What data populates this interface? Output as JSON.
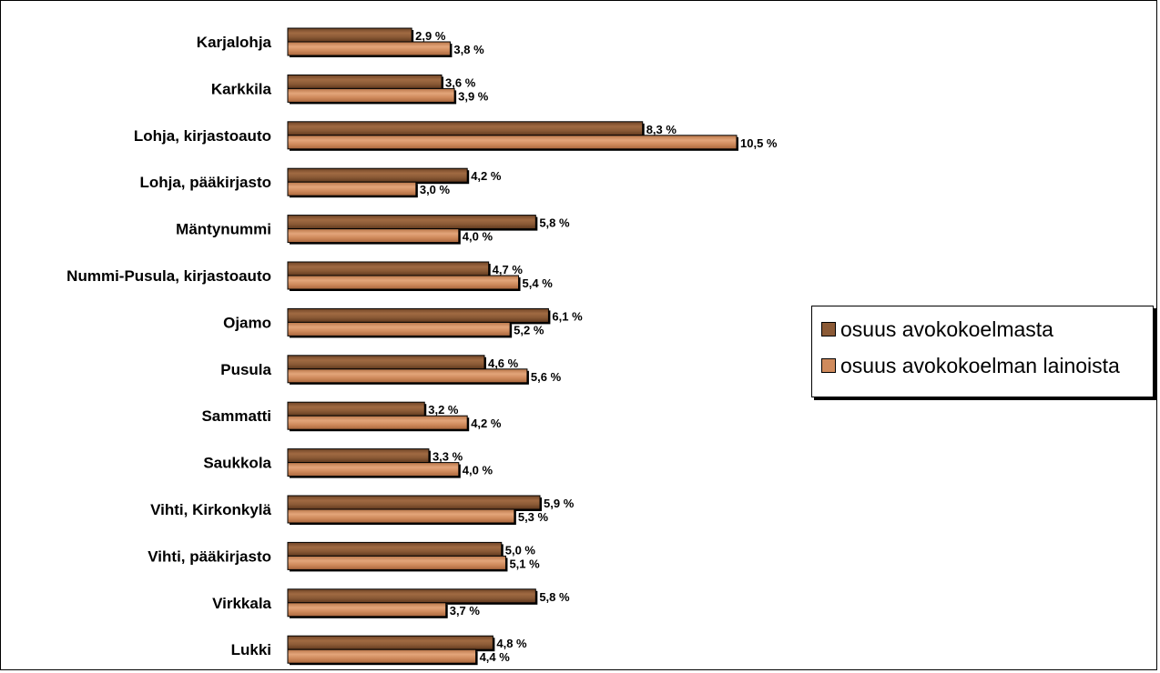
{
  "chart_data": {
    "type": "bar",
    "orientation": "horizontal",
    "categories": [
      "Karjalohja",
      "Karkkila",
      "Lohja, kirjastoauto",
      "Lohja, pääkirjasto",
      "Mäntynummi",
      "Nummi-Pusula, kirjastoauto",
      "Ojamo",
      "Pusula",
      "Sammatti",
      "Saukkola",
      "Vihti, Kirkonkylä",
      "Vihti, pääkirjasto",
      "Virkkala",
      "Lukki"
    ],
    "series": [
      {
        "name": "osuus avokokoelmasta",
        "color": "#8b5a36",
        "values": [
          2.9,
          3.6,
          8.3,
          4.2,
          5.8,
          4.7,
          6.1,
          4.6,
          3.2,
          3.3,
          5.9,
          5.0,
          5.8,
          4.8
        ],
        "labels": [
          "2,9 %",
          "3,6 %",
          "8,3 %",
          "4,2 %",
          "5,8 %",
          "4,7 %",
          "6,1 %",
          "4,6 %",
          "3,2 %",
          "3,3 %",
          "5,9 %",
          "5,0 %",
          "5,8 %",
          "4,8 %"
        ]
      },
      {
        "name": "osuus avokokoelman lainoista",
        "color": "#cf8a5c",
        "values": [
          3.8,
          3.9,
          10.5,
          3.0,
          4.0,
          5.4,
          5.2,
          5.6,
          4.2,
          4.0,
          5.3,
          5.1,
          3.7,
          4.4
        ],
        "labels": [
          "3,8 %",
          "3,9 %",
          "10,5 %",
          "3,0 %",
          "4,0 %",
          "5,4 %",
          "5,2 %",
          "5,6 %",
          "4,2 %",
          "4,0 %",
          "5,3 %",
          "5,1 %",
          "3,7 %",
          "4,4 %"
        ]
      }
    ],
    "xlim": [
      0,
      10.5
    ],
    "grid": false,
    "legend_position": "right"
  }
}
